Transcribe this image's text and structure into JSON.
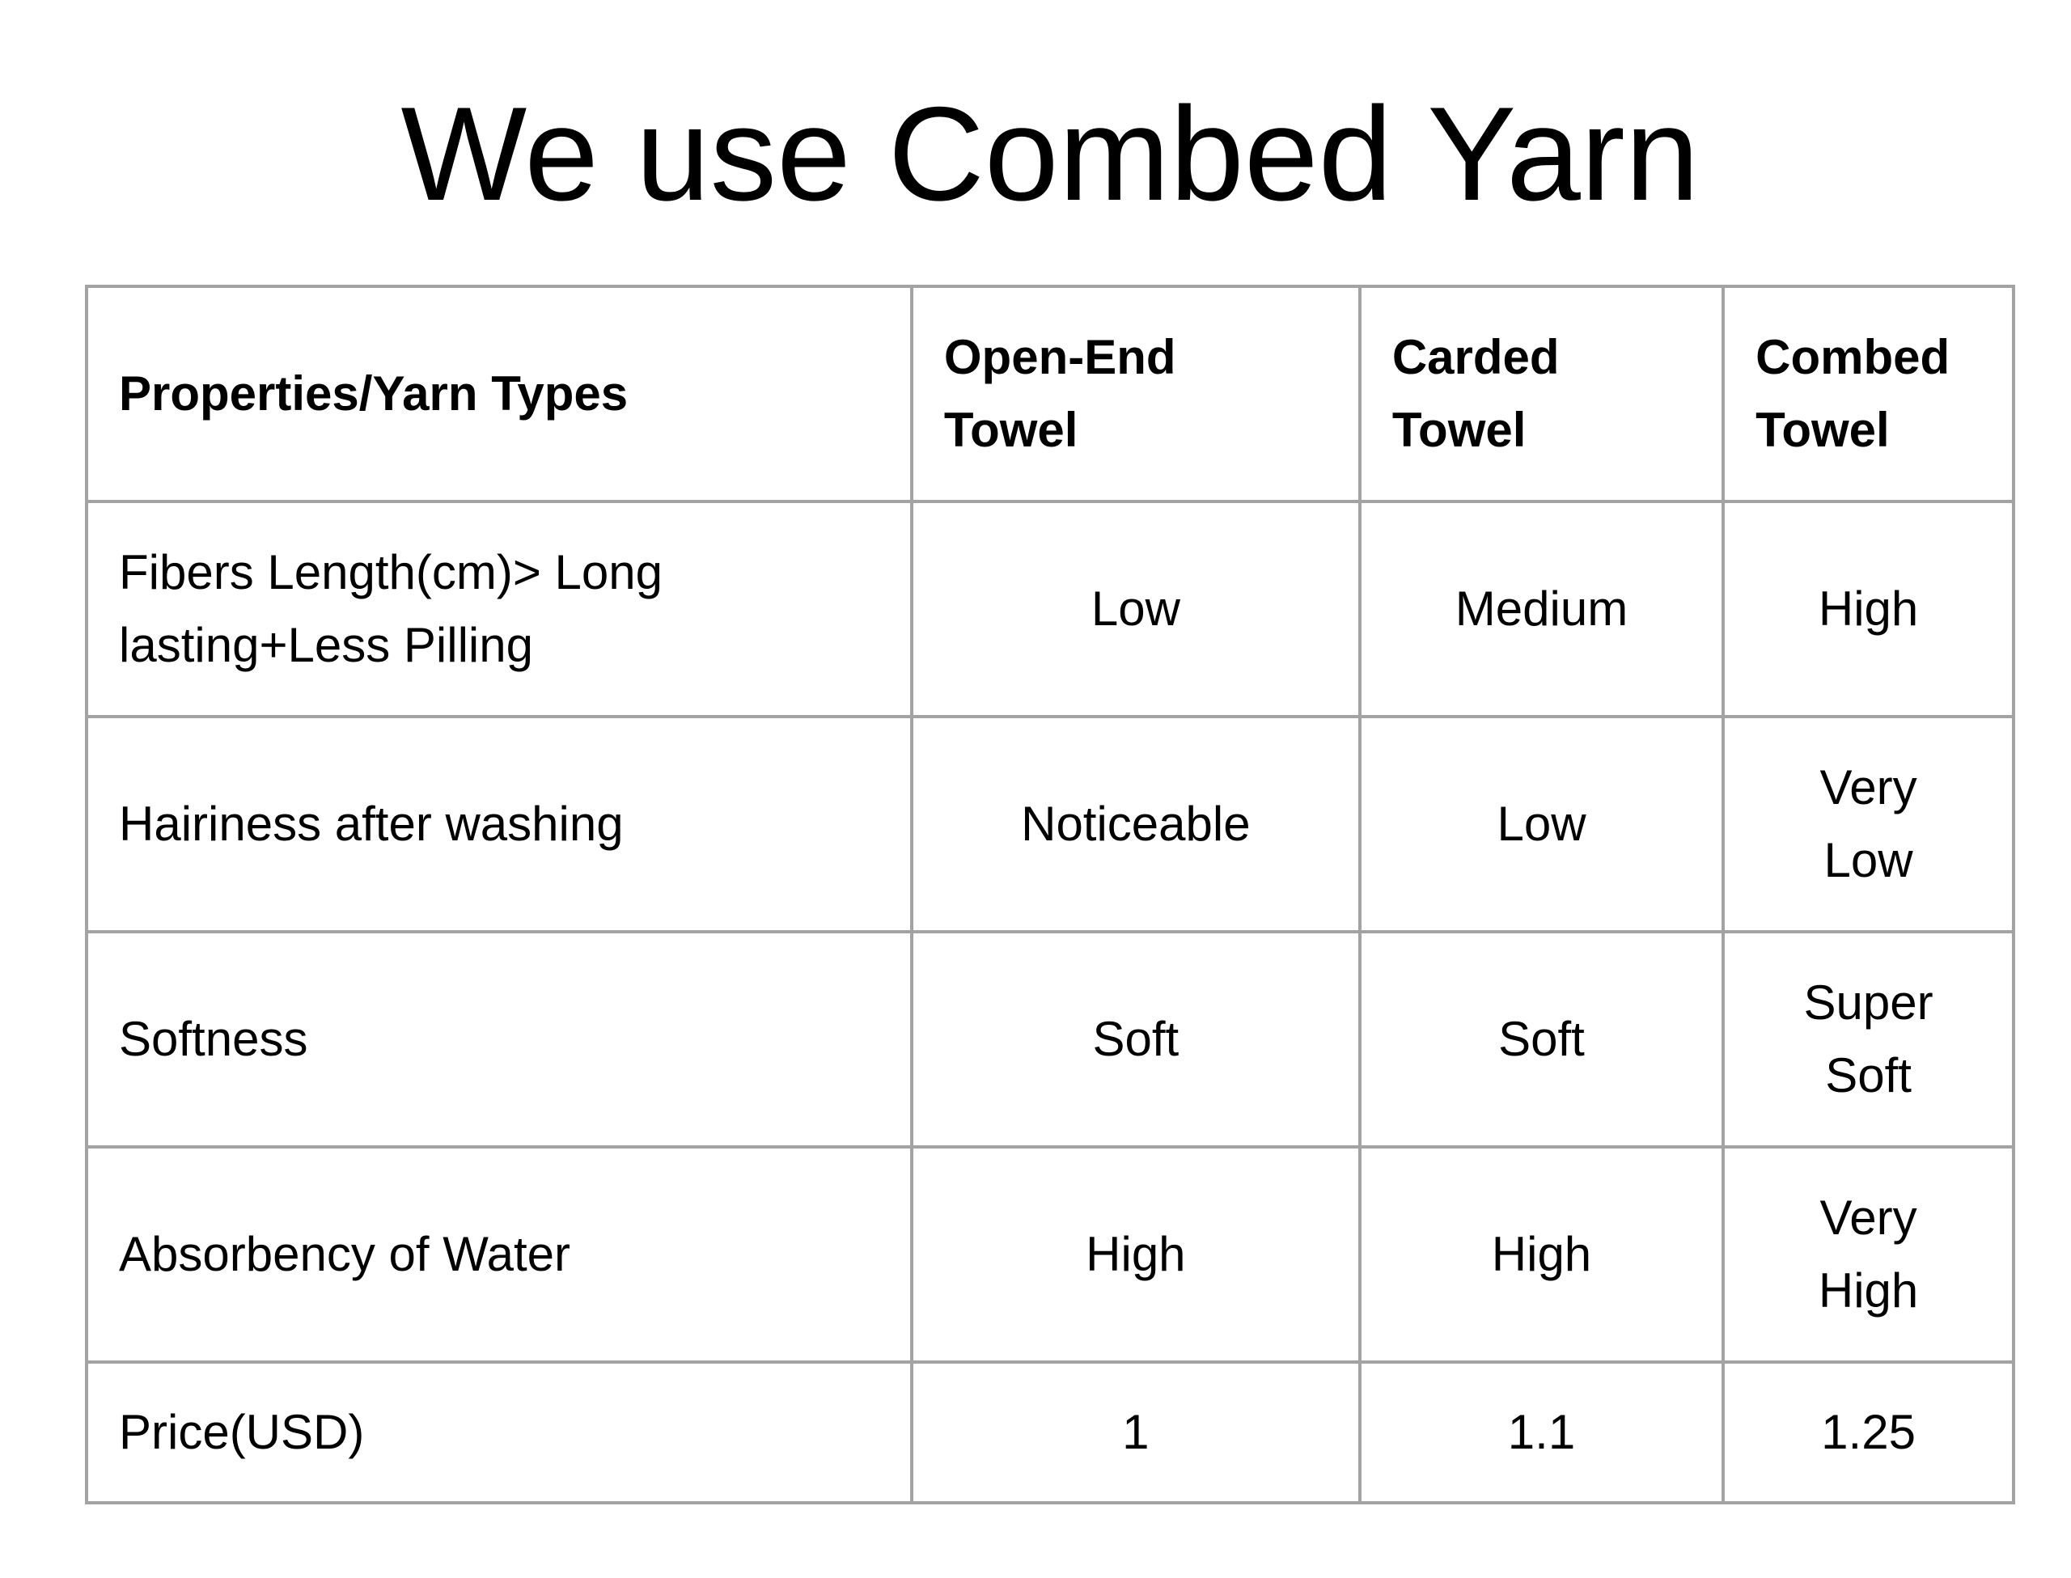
{
  "title": "We use Combed Yarn",
  "table": {
    "headers": [
      "Properties/Yarn Types",
      "Open-End\nTowel",
      "Carded\nTowel",
      "Combed\nTowel"
    ],
    "rows": [
      [
        "Fibers Length(cm)> Long lasting+Less Pilling",
        "Low",
        "Medium",
        "High"
      ],
      [
        "Hairiness after washing",
        "Noticeable",
        "Low",
        "Very\nLow"
      ],
      [
        "Softness",
        "Soft",
        "Soft",
        "Super\nSoft"
      ],
      [
        "Absorbency of Water",
        "High",
        "High",
        "Very\nHigh"
      ],
      [
        "Price(USD)",
        "1",
        "1.1",
        "1.25"
      ]
    ]
  }
}
